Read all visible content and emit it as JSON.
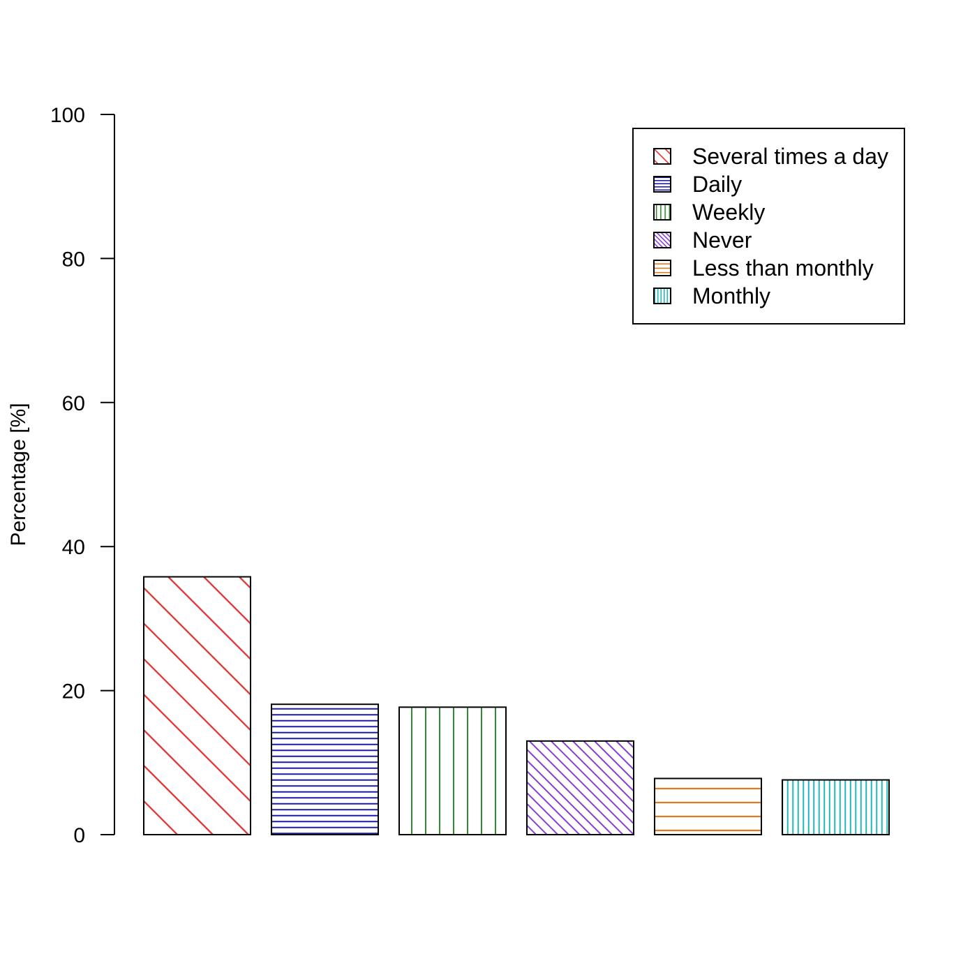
{
  "chart_data": {
    "type": "bar",
    "categories": [
      "Several times a day",
      "Daily",
      "Weekly",
      "Never",
      "Less than monthly",
      "Monthly"
    ],
    "values": [
      35.8,
      18.1,
      17.7,
      13.0,
      7.8,
      7.6
    ],
    "ylabel": "Percentage [%]",
    "xlabel": "",
    "ylim": [
      0,
      100
    ],
    "yticks": [
      0,
      20,
      40,
      60,
      80,
      100
    ],
    "grid": false,
    "legend": {
      "placement": "top-right",
      "entries": [
        "Several times a day",
        "Daily",
        "Weekly",
        "Never",
        "Less than monthly",
        "Monthly"
      ]
    },
    "series_styles": [
      {
        "color": "#e03030",
        "pattern": "diagonal-wide"
      },
      {
        "color": "#1a1aa8",
        "pattern": "horizontal-dense"
      },
      {
        "color": "#2e8b2e",
        "pattern": "vertical-wide"
      },
      {
        "color": "#8a3fd0",
        "pattern": "diagonal-dense"
      },
      {
        "color": "#e07a1a",
        "pattern": "horizontal-wide"
      },
      {
        "color": "#20b8b8",
        "pattern": "vertical-dense"
      }
    ]
  }
}
